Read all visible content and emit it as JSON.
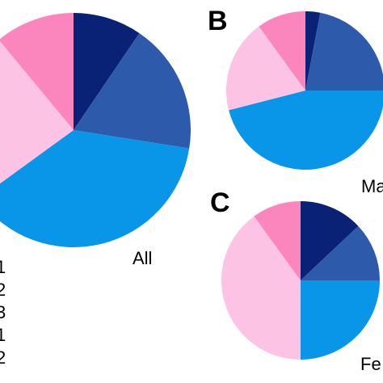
{
  "chart_data": [
    {
      "type": "pie",
      "panel": "",
      "label": "All",
      "slices": [
        {
          "color": "#0a2275",
          "value": 9.5
        },
        {
          "color": "#2d5aaa",
          "value": 18
        },
        {
          "color": "#0996e8",
          "value": 37.5
        },
        {
          "color": "#fcc3e5",
          "value": 24
        },
        {
          "color": "#fb86be",
          "value": 11
        }
      ]
    },
    {
      "type": "pie",
      "panel": "B",
      "label": "Ma",
      "slices": [
        {
          "color": "#0a2275",
          "value": 3
        },
        {
          "color": "#2d5aaa",
          "value": 22
        },
        {
          "color": "#0996e8",
          "value": 46
        },
        {
          "color": "#fcc3e5",
          "value": 19
        },
        {
          "color": "#fb86be",
          "value": 10
        }
      ]
    },
    {
      "type": "pie",
      "panel": "C",
      "label": "Fe",
      "slices": [
        {
          "color": "#0a2275",
          "value": 13
        },
        {
          "color": "#2d5aaa",
          "value": 12
        },
        {
          "color": "#0996e8",
          "value": 25
        },
        {
          "color": "#fcc3e5",
          "value": 40
        },
        {
          "color": "#fb86be",
          "value": 10
        }
      ]
    }
  ],
  "legend": {
    "entries": [
      "1",
      "2",
      "3",
      "1",
      "2"
    ]
  }
}
